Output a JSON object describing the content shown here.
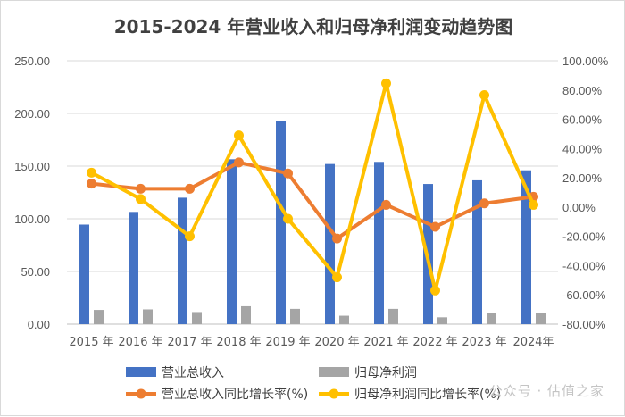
{
  "chart_data": {
    "type": "bar+line",
    "title": "2015-2024 年营业收入和归母净利润变动趋势图",
    "categories": [
      "2015 年",
      "2016 年",
      "2017 年",
      "2018 年",
      "2019 年",
      "2020 年",
      "2021 年",
      "2022 年",
      "2023 年",
      "2024年"
    ],
    "y_left": {
      "range": [
        0,
        250
      ],
      "ticks": [
        "0.00",
        "50.00",
        "100.00",
        "150.00",
        "200.00",
        "250.00"
      ]
    },
    "y_right": {
      "range": [
        -80,
        100
      ],
      "ticks": [
        "-80.00%",
        "-60.00%",
        "-40.00%",
        "-20.00%",
        "0.00%",
        "20.00%",
        "40.00%",
        "60.00%",
        "80.00%",
        "100.00%"
      ]
    },
    "series": [
      {
        "name": "营业总收入",
        "kind": "bar",
        "axis": "left",
        "color": "#4472c4",
        "values": [
          94.5,
          106.5,
          120,
          156.5,
          193,
          152,
          154,
          133,
          136.5,
          146
        ]
      },
      {
        "name": "归母净利润",
        "kind": "bar",
        "axis": "left",
        "color": "#a5a5a5",
        "values": [
          13.5,
          14.0,
          11.5,
          17.0,
          14.5,
          8.0,
          14.5,
          6.5,
          10.5,
          11.0
        ]
      },
      {
        "name": "营业总收入同比增长率(%)",
        "kind": "line",
        "axis": "right",
        "color": "#ed7d31",
        "values": [
          16.0,
          12.5,
          12.5,
          30.5,
          23.0,
          -21.5,
          1.5,
          -13.5,
          2.5,
          7.0
        ]
      },
      {
        "name": "归母净利润同比增长率(%)",
        "kind": "line",
        "axis": "right",
        "color": "#ffc000",
        "values": [
          23.5,
          5.5,
          -20.0,
          49.0,
          -8.0,
          -48.0,
          84.5,
          -57.0,
          76.5,
          1.5
        ]
      }
    ],
    "legend_position": "bottom",
    "grid": "horizontal"
  },
  "watermark": "公众号 · 估值之家"
}
